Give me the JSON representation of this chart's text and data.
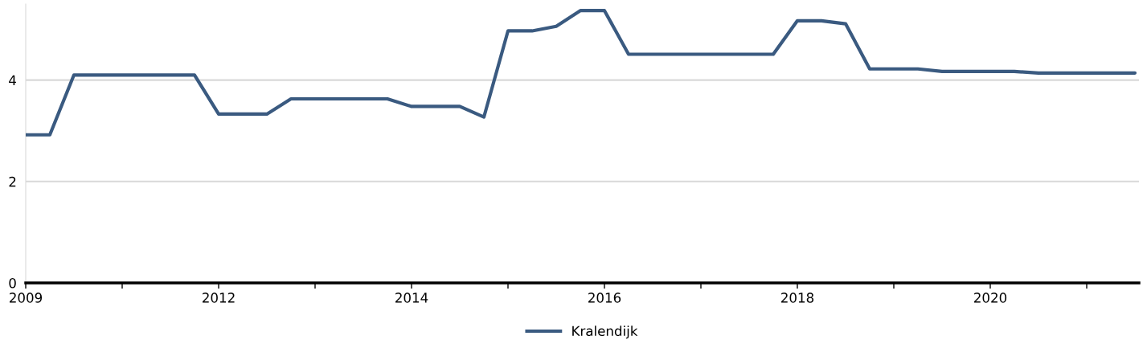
{
  "chart_data": {
    "type": "line",
    "categories": [
      "2009",
      null,
      null,
      null,
      null,
      null,
      null,
      null,
      "2012",
      null,
      null,
      null,
      null,
      null,
      null,
      null,
      "2014",
      null,
      null,
      null,
      null,
      null,
      null,
      null,
      "2016",
      null,
      null,
      null,
      null,
      null,
      null,
      null,
      "2018",
      null,
      null,
      null,
      null,
      null,
      null,
      null,
      "2020",
      null,
      null,
      null,
      null,
      null,
      null
    ],
    "series": [
      {
        "name": "Kralendijk",
        "color": "#3a5a80",
        "values": [
          2.92,
          2.92,
          4.1,
          4.1,
          4.1,
          4.1,
          4.1,
          4.1,
          3.33,
          3.33,
          3.33,
          3.63,
          3.63,
          3.63,
          3.63,
          3.63,
          3.48,
          3.48,
          3.48,
          3.27,
          4.97,
          4.97,
          5.06,
          5.37,
          5.37,
          4.51,
          4.51,
          4.51,
          4.51,
          4.51,
          4.51,
          4.51,
          5.17,
          5.17,
          5.11,
          4.22,
          4.22,
          4.22,
          4.17,
          4.17,
          4.17,
          4.17,
          4.14,
          4.14,
          4.14,
          4.14,
          4.14
        ]
      }
    ],
    "ylim": [
      0,
      5.5
    ],
    "yticks": [
      0,
      2,
      4
    ],
    "grid": "y",
    "legend": "bottom",
    "marker": "none",
    "line_style": "solid"
  }
}
